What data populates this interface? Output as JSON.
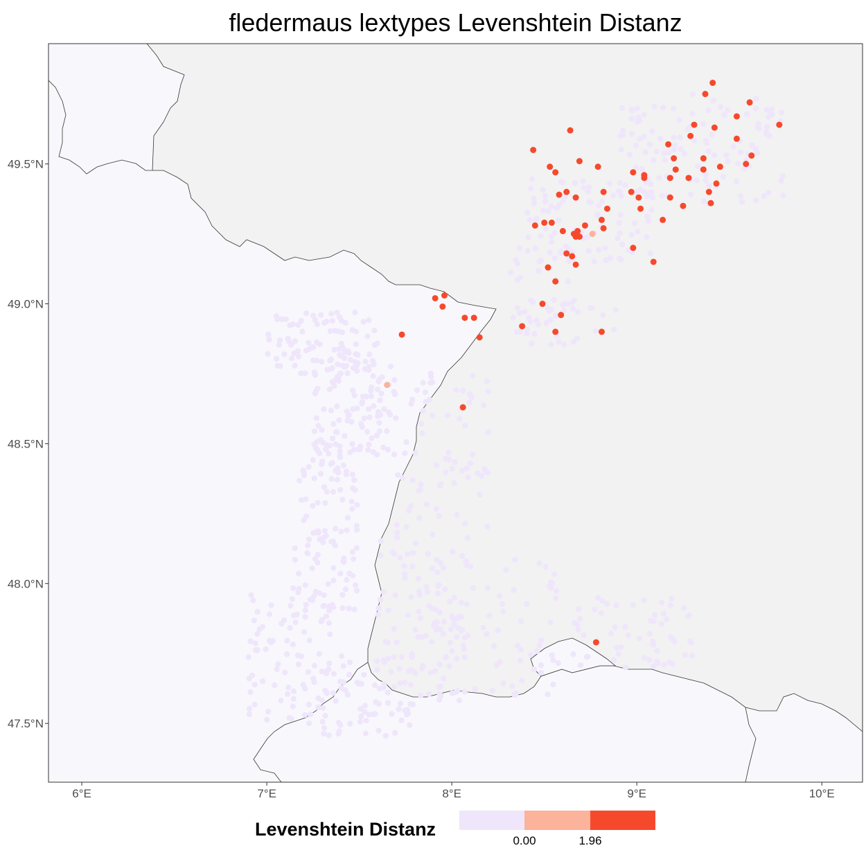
{
  "title": "fledermaus lextypes Levenshtein Distanz",
  "chart_data": {
    "type": "scatter",
    "title": "fledermaus lextypes Levenshtein Distanz",
    "x_axis": {
      "unit": "longitude (°E)",
      "ticks": [
        "6°E",
        "7°E",
        "8°E",
        "9°E",
        "10°E"
      ],
      "tick_values": [
        6,
        7,
        8,
        9,
        10
      ],
      "range": [
        5.82,
        10.22
      ]
    },
    "y_axis": {
      "unit": "latitude (°N)",
      "ticks": [
        "47.5°N",
        "48.0°N",
        "48.5°N",
        "49.0°N",
        "49.5°N"
      ],
      "tick_values": [
        47.5,
        48.0,
        48.5,
        49.0,
        49.5
      ],
      "range": [
        47.29,
        49.93
      ]
    },
    "grid": false,
    "legend": {
      "title": "Levenshtein Distanz",
      "position": "bottom",
      "breaks": [
        "0.00",
        "1.96"
      ],
      "colors": [
        "#efe6fb",
        "#fcb39b",
        "#f6492c"
      ]
    },
    "highlighted_points": [
      {
        "lon": 9.41,
        "lat": 49.79,
        "d": 2
      },
      {
        "lon": 9.37,
        "lat": 49.75,
        "d": 2
      },
      {
        "lon": 9.61,
        "lat": 49.72,
        "d": 2
      },
      {
        "lon": 9.54,
        "lat": 49.67,
        "d": 2
      },
      {
        "lon": 9.77,
        "lat": 49.64,
        "d": 2
      },
      {
        "lon": 9.31,
        "lat": 49.64,
        "d": 2
      },
      {
        "lon": 9.42,
        "lat": 49.63,
        "d": 2
      },
      {
        "lon": 8.64,
        "lat": 49.62,
        "d": 2
      },
      {
        "lon": 9.29,
        "lat": 49.6,
        "d": 2
      },
      {
        "lon": 9.54,
        "lat": 49.59,
        "d": 2
      },
      {
        "lon": 9.17,
        "lat": 49.57,
        "d": 2
      },
      {
        "lon": 8.44,
        "lat": 49.55,
        "d": 2
      },
      {
        "lon": 9.62,
        "lat": 49.53,
        "d": 2
      },
      {
        "lon": 9.36,
        "lat": 49.52,
        "d": 2
      },
      {
        "lon": 9.2,
        "lat": 49.52,
        "d": 2
      },
      {
        "lon": 8.69,
        "lat": 49.51,
        "d": 2
      },
      {
        "lon": 9.59,
        "lat": 49.5,
        "d": 2
      },
      {
        "lon": 8.53,
        "lat": 49.49,
        "d": 2
      },
      {
        "lon": 8.79,
        "lat": 49.49,
        "d": 2
      },
      {
        "lon": 9.45,
        "lat": 49.49,
        "d": 2
      },
      {
        "lon": 9.21,
        "lat": 49.48,
        "d": 2
      },
      {
        "lon": 9.36,
        "lat": 49.48,
        "d": 2
      },
      {
        "lon": 8.56,
        "lat": 49.47,
        "d": 2
      },
      {
        "lon": 8.98,
        "lat": 49.47,
        "d": 2
      },
      {
        "lon": 9.04,
        "lat": 49.46,
        "d": 2
      },
      {
        "lon": 9.04,
        "lat": 49.45,
        "d": 2
      },
      {
        "lon": 9.18,
        "lat": 49.45,
        "d": 2
      },
      {
        "lon": 9.28,
        "lat": 49.45,
        "d": 2
      },
      {
        "lon": 9.43,
        "lat": 49.43,
        "d": 2
      },
      {
        "lon": 8.62,
        "lat": 49.4,
        "d": 2
      },
      {
        "lon": 8.58,
        "lat": 49.39,
        "d": 2
      },
      {
        "lon": 8.97,
        "lat": 49.4,
        "d": 2
      },
      {
        "lon": 9.39,
        "lat": 49.4,
        "d": 2
      },
      {
        "lon": 8.82,
        "lat": 49.4,
        "d": 2
      },
      {
        "lon": 9.01,
        "lat": 49.38,
        "d": 2
      },
      {
        "lon": 8.67,
        "lat": 49.38,
        "d": 2
      },
      {
        "lon": 9.18,
        "lat": 49.38,
        "d": 2
      },
      {
        "lon": 9.4,
        "lat": 49.36,
        "d": 2
      },
      {
        "lon": 9.25,
        "lat": 49.35,
        "d": 2
      },
      {
        "lon": 9.02,
        "lat": 49.34,
        "d": 2
      },
      {
        "lon": 8.84,
        "lat": 49.34,
        "d": 2
      },
      {
        "lon": 9.14,
        "lat": 49.3,
        "d": 2
      },
      {
        "lon": 8.81,
        "lat": 49.3,
        "d": 2
      },
      {
        "lon": 8.54,
        "lat": 49.29,
        "d": 2
      },
      {
        "lon": 8.5,
        "lat": 49.29,
        "d": 2
      },
      {
        "lon": 8.45,
        "lat": 49.28,
        "d": 2
      },
      {
        "lon": 8.72,
        "lat": 49.28,
        "d": 2
      },
      {
        "lon": 8.82,
        "lat": 49.27,
        "d": 2
      },
      {
        "lon": 8.6,
        "lat": 49.26,
        "d": 2
      },
      {
        "lon": 8.68,
        "lat": 49.26,
        "d": 2
      },
      {
        "lon": 8.66,
        "lat": 49.25,
        "d": 2
      },
      {
        "lon": 8.67,
        "lat": 49.24,
        "d": 2
      },
      {
        "lon": 8.69,
        "lat": 49.24,
        "d": 2
      },
      {
        "lon": 8.76,
        "lat": 49.25,
        "d": 1
      },
      {
        "lon": 8.98,
        "lat": 49.2,
        "d": 2
      },
      {
        "lon": 8.62,
        "lat": 49.18,
        "d": 2
      },
      {
        "lon": 8.65,
        "lat": 49.17,
        "d": 2
      },
      {
        "lon": 9.09,
        "lat": 49.15,
        "d": 2
      },
      {
        "lon": 8.67,
        "lat": 49.14,
        "d": 2
      },
      {
        "lon": 8.52,
        "lat": 49.13,
        "d": 2
      },
      {
        "lon": 8.56,
        "lat": 49.08,
        "d": 2
      },
      {
        "lon": 7.96,
        "lat": 49.03,
        "d": 2
      },
      {
        "lon": 7.91,
        "lat": 49.02,
        "d": 2
      },
      {
        "lon": 8.49,
        "lat": 49.0,
        "d": 2
      },
      {
        "lon": 7.95,
        "lat": 48.99,
        "d": 2
      },
      {
        "lon": 8.59,
        "lat": 48.96,
        "d": 2
      },
      {
        "lon": 8.12,
        "lat": 48.95,
        "d": 2
      },
      {
        "lon": 8.07,
        "lat": 48.95,
        "d": 2
      },
      {
        "lon": 8.38,
        "lat": 48.92,
        "d": 2
      },
      {
        "lon": 8.56,
        "lat": 48.9,
        "d": 2
      },
      {
        "lon": 8.81,
        "lat": 48.9,
        "d": 2
      },
      {
        "lon": 7.73,
        "lat": 48.89,
        "d": 2
      },
      {
        "lon": 8.15,
        "lat": 48.88,
        "d": 2
      },
      {
        "lon": 7.65,
        "lat": 48.71,
        "d": 1
      },
      {
        "lon": 8.06,
        "lat": 48.63,
        "d": 2
      },
      {
        "lon": 8.78,
        "lat": 47.79,
        "d": 2
      }
    ],
    "base_point_level": "0.00"
  }
}
